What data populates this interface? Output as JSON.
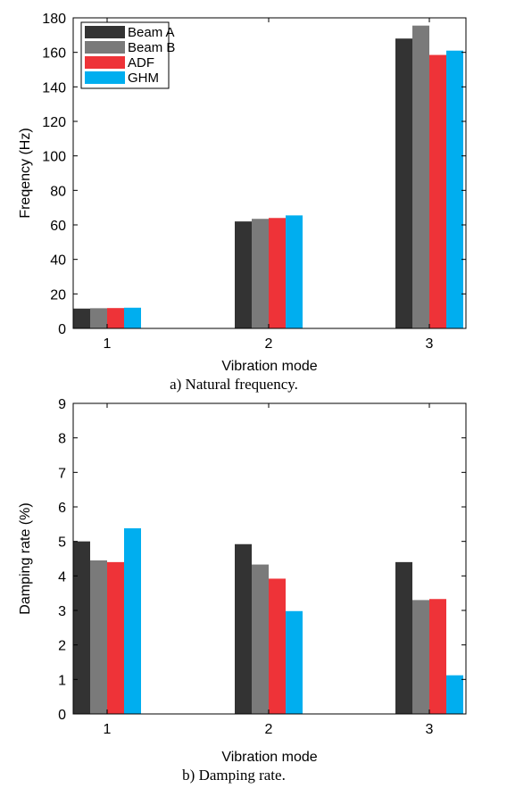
{
  "chart_data": [
    {
      "type": "bar",
      "caption": "a) Natural frequency.",
      "xlabel": "Vibration mode",
      "ylabel": "Freqency (Hz)",
      "categories": [
        "1",
        "2",
        "3"
      ],
      "ylim": [
        0,
        180
      ],
      "yticks": [
        0,
        20,
        40,
        60,
        80,
        100,
        120,
        140,
        160,
        180
      ],
      "legend_position": "top-left",
      "series": [
        {
          "name": "Beam A",
          "color": "#333333",
          "values": [
            11.5,
            62,
            168
          ]
        },
        {
          "name": "Beam B",
          "color": "#7a7a7a",
          "values": [
            11.7,
            63.5,
            175.5
          ]
        },
        {
          "name": "ADF",
          "color": "#ee3338",
          "values": [
            11.8,
            64,
            158.5
          ]
        },
        {
          "name": "GHM",
          "color": "#00aeef",
          "values": [
            12,
            65.5,
            161
          ]
        }
      ]
    },
    {
      "type": "bar",
      "caption": "b) Damping rate.",
      "xlabel": "Vibration mode",
      "ylabel": "Damping rate (%)",
      "categories": [
        "1",
        "2",
        "3"
      ],
      "ylim": [
        0,
        9
      ],
      "yticks": [
        0,
        1,
        2,
        3,
        4,
        5,
        6,
        7,
        8,
        9
      ],
      "series": [
        {
          "name": "Beam A",
          "color": "#333333",
          "values": [
            5.0,
            4.92,
            4.4
          ]
        },
        {
          "name": "Beam B",
          "color": "#7a7a7a",
          "values": [
            4.45,
            4.33,
            3.3
          ]
        },
        {
          "name": "ADF",
          "color": "#ee3338",
          "values": [
            4.4,
            3.92,
            3.33
          ]
        },
        {
          "name": "GHM",
          "color": "#00aeef",
          "values": [
            5.38,
            2.98,
            1.12
          ]
        }
      ]
    }
  ]
}
